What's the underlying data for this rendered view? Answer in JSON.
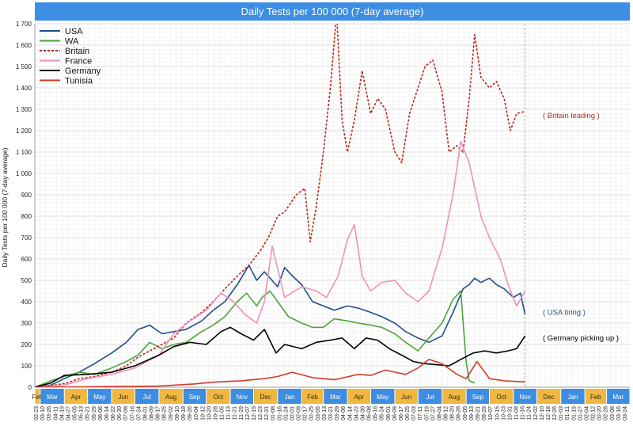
{
  "chart_data": {
    "type": "line",
    "title": "Daily Tests per 100 000 (7-day average)",
    "ylabel": "Daily Tests per 100 000 (7-day average)",
    "ylim": [
      0,
      1700
    ],
    "y_ticks": [
      0,
      100,
      200,
      300,
      400,
      500,
      600,
      700,
      800,
      900,
      1000,
      1100,
      1200,
      1300,
      1400,
      1500,
      1600,
      1700
    ],
    "y_tick_labels": [
      "0",
      "100",
      "200",
      "300",
      "400",
      "500",
      "600",
      "700",
      "800",
      "900",
      "1 000",
      "1 100",
      "1 200",
      "1 300",
      "1 400",
      "1 500",
      "1 600",
      "1 700"
    ],
    "x_start": "2020-02-23",
    "x_end": "2022-03-31",
    "current_date": "2021-11-16",
    "grid": true,
    "legend_position": "top-left",
    "date_labels": [
      "02-23",
      "03-10",
      "03-26",
      "04-11",
      "04-19",
      "04-27",
      "05-05",
      "05-13",
      "05-21",
      "05-29",
      "06-06",
      "06-14",
      "06-22",
      "06-30",
      "07-08",
      "07-16",
      "07-24",
      "08-01",
      "08-09",
      "08-17",
      "08-25",
      "09-02",
      "09-10",
      "09-18",
      "09-26",
      "10-04",
      "10-12",
      "10-20",
      "10-28",
      "11-05",
      "11-13",
      "11-21",
      "11-29",
      "12-07",
      "12-15",
      "12-23",
      "12-31",
      "01-08",
      "01-16",
      "01-24",
      "02-01",
      "02-09",
      "02-17",
      "02-25",
      "03-05",
      "03-13",
      "03-21",
      "03-29",
      "04-06",
      "04-14",
      "04-22",
      "04-30",
      "05-08",
      "05-16",
      "05-24",
      "06-01",
      "06-09",
      "06-17",
      "06-25",
      "07-03",
      "07-11",
      "07-19",
      "07-27",
      "08-04",
      "08-12",
      "08-20",
      "08-28",
      "09-05",
      "09-13",
      "09-21",
      "09-29",
      "10-07",
      "10-15",
      "10-23",
      "10-31",
      "11-08",
      "11-16",
      "11-24",
      "12-02",
      "12-10",
      "12-18",
      "12-26",
      "01-03",
      "01-11",
      "01-19",
      "01-27",
      "02-04",
      "02-12",
      "02-20",
      "02-28",
      "03-08",
      "03-16",
      "03-24"
    ],
    "months": [
      {
        "label": "Feb",
        "start": "2020-02-23",
        "end": "2020-03-01",
        "color": "#f0b840"
      },
      {
        "label": "Mar",
        "start": "2020-03-01",
        "end": "2020-04-01",
        "color": "#3d8ee3"
      },
      {
        "label": "Apr",
        "start": "2020-04-01",
        "end": "2020-05-01",
        "color": "#f0b840"
      },
      {
        "label": "May",
        "start": "2020-05-01",
        "end": "2020-06-01",
        "color": "#3d8ee3"
      },
      {
        "label": "Jun",
        "start": "2020-06-01",
        "end": "2020-07-01",
        "color": "#f0b840"
      },
      {
        "label": "Jul",
        "start": "2020-07-01",
        "end": "2020-08-01",
        "color": "#3d8ee3"
      },
      {
        "label": "Aug",
        "start": "2020-08-01",
        "end": "2020-09-01",
        "color": "#f0b840"
      },
      {
        "label": "Sep",
        "start": "2020-09-01",
        "end": "2020-10-01",
        "color": "#3d8ee3"
      },
      {
        "label": "Oct",
        "start": "2020-10-01",
        "end": "2020-11-01",
        "color": "#f0b840"
      },
      {
        "label": "Nov",
        "start": "2020-11-01",
        "end": "2020-12-01",
        "color": "#3d8ee3"
      },
      {
        "label": "Dec",
        "start": "2020-12-01",
        "end": "2021-01-01",
        "color": "#f0b840"
      },
      {
        "label": "Jan",
        "start": "2021-01-01",
        "end": "2021-02-01",
        "color": "#3d8ee3"
      },
      {
        "label": "Feb",
        "start": "2021-02-01",
        "end": "2021-03-01",
        "color": "#f0b840"
      },
      {
        "label": "Mar",
        "start": "2021-03-01",
        "end": "2021-04-01",
        "color": "#3d8ee3"
      },
      {
        "label": "Apr",
        "start": "2021-04-01",
        "end": "2021-05-01",
        "color": "#f0b840"
      },
      {
        "label": "May",
        "start": "2021-05-01",
        "end": "2021-06-01",
        "color": "#3d8ee3"
      },
      {
        "label": "Jun",
        "start": "2021-06-01",
        "end": "2021-07-01",
        "color": "#f0b840"
      },
      {
        "label": "Jul",
        "start": "2021-07-01",
        "end": "2021-08-01",
        "color": "#3d8ee3"
      },
      {
        "label": "Aug",
        "start": "2021-08-01",
        "end": "2021-09-01",
        "color": "#f0b840"
      },
      {
        "label": "Sep",
        "start": "2021-09-01",
        "end": "2021-10-01",
        "color": "#3d8ee3"
      },
      {
        "label": "Oct",
        "start": "2021-10-01",
        "end": "2021-11-01",
        "color": "#f0b840"
      },
      {
        "label": "Nov",
        "start": "2021-11-01",
        "end": "2021-12-01",
        "color": "#3d8ee3"
      },
      {
        "label": "Dec",
        "start": "2021-12-01",
        "end": "2022-01-01",
        "color": "#f0b840"
      },
      {
        "label": "Jan",
        "start": "2022-01-01",
        "end": "2022-02-01",
        "color": "#3d8ee3"
      },
      {
        "label": "Feb",
        "start": "2022-02-01",
        "end": "2022-03-01",
        "color": "#f0b840"
      },
      {
        "label": "Mar",
        "start": "2022-03-01",
        "end": "2022-03-31",
        "color": "#3d8ee3"
      }
    ],
    "series": [
      {
        "name": "USA",
        "color": "#1f4e8c",
        "dash": "none",
        "width": 1.6,
        "x": [
          "2020-02-23",
          "2020-03-15",
          "2020-04-01",
          "2020-04-20",
          "2020-05-10",
          "2020-06-01",
          "2020-06-20",
          "2020-07-05",
          "2020-07-20",
          "2020-08-05",
          "2020-08-20",
          "2020-09-05",
          "2020-09-25",
          "2020-10-10",
          "2020-10-25",
          "2020-11-10",
          "2020-11-25",
          "2020-12-05",
          "2020-12-15",
          "2021-01-01",
          "2021-01-10",
          "2021-01-20",
          "2021-02-01",
          "2021-02-15",
          "2021-03-01",
          "2021-03-15",
          "2021-04-01",
          "2021-04-15",
          "2021-05-01",
          "2021-05-15",
          "2021-06-01",
          "2021-06-15",
          "2021-07-01",
          "2021-07-15",
          "2021-08-01",
          "2021-08-15",
          "2021-08-28",
          "2021-09-05",
          "2021-09-12",
          "2021-09-20",
          "2021-10-01",
          "2021-10-10",
          "2021-10-20",
          "2021-11-01",
          "2021-11-10",
          "2021-11-16"
        ],
        "values": [
          0,
          10,
          40,
          70,
          110,
          160,
          210,
          270,
          290,
          250,
          260,
          270,
          310,
          360,
          400,
          480,
          570,
          500,
          540,
          470,
          560,
          520,
          480,
          400,
          380,
          360,
          380,
          370,
          350,
          330,
          300,
          260,
          230,
          210,
          240,
          350,
          460,
          480,
          510,
          490,
          510,
          480,
          460,
          420,
          440,
          340
        ]
      },
      {
        "name": "WA",
        "color": "#4ca33a",
        "dash": "none",
        "width": 1.6,
        "x": [
          "2020-02-23",
          "2020-03-15",
          "2020-04-01",
          "2020-04-20",
          "2020-05-10",
          "2020-06-01",
          "2020-06-20",
          "2020-07-05",
          "2020-07-20",
          "2020-08-05",
          "2020-08-20",
          "2020-09-05",
          "2020-09-25",
          "2020-10-10",
          "2020-10-25",
          "2020-11-10",
          "2020-11-22",
          "2020-12-05",
          "2020-12-12",
          "2020-12-22",
          "2021-01-01",
          "2021-01-15",
          "2021-02-01",
          "2021-02-15",
          "2021-03-01",
          "2021-03-15",
          "2021-04-01",
          "2021-04-15",
          "2021-05-01",
          "2021-05-15",
          "2021-06-01",
          "2021-06-15",
          "2021-07-01",
          "2021-07-15",
          "2021-08-01",
          "2021-08-15",
          "2021-08-25",
          "2021-09-01",
          "2021-09-05",
          "2021-09-12"
        ],
        "values": [
          0,
          30,
          50,
          70,
          60,
          90,
          120,
          150,
          210,
          180,
          200,
          210,
          260,
          290,
          330,
          400,
          440,
          380,
          420,
          450,
          400,
          330,
          300,
          280,
          280,
          320,
          310,
          300,
          290,
          280,
          250,
          210,
          170,
          230,
          300,
          410,
          450,
          120,
          30,
          20
        ]
      },
      {
        "name": "Britain",
        "color": "#b5281c",
        "dash": "3,2",
        "width": 1.6,
        "x": [
          "2020-02-23",
          "2020-03-20",
          "2020-04-05",
          "2020-04-20",
          "2020-05-10",
          "2020-06-01",
          "2020-06-20",
          "2020-07-05",
          "2020-07-20",
          "2020-08-05",
          "2020-08-20",
          "2020-09-05",
          "2020-09-25",
          "2020-10-10",
          "2020-10-25",
          "2020-11-10",
          "2020-11-25",
          "2020-12-10",
          "2020-12-20",
          "2021-01-01",
          "2021-01-10",
          "2021-01-25",
          "2021-02-05",
          "2021-02-12",
          "2021-02-20",
          "2021-03-01",
          "2021-03-10",
          "2021-03-18",
          "2021-03-25",
          "2021-04-01",
          "2021-04-10",
          "2021-04-20",
          "2021-05-01",
          "2021-05-10",
          "2021-05-20",
          "2021-06-01",
          "2021-06-10",
          "2021-06-20",
          "2021-07-01",
          "2021-07-10",
          "2021-07-20",
          "2021-08-01",
          "2021-08-10",
          "2021-08-20",
          "2021-08-28",
          "2021-09-05",
          "2021-09-12",
          "2021-09-20",
          "2021-10-01",
          "2021-10-10",
          "2021-10-20",
          "2021-10-28",
          "2021-11-05",
          "2021-11-16"
        ],
        "values": [
          0,
          10,
          20,
          40,
          50,
          70,
          100,
          140,
          170,
          200,
          230,
          300,
          350,
          400,
          460,
          520,
          570,
          640,
          700,
          800,
          820,
          900,
          930,
          680,
          850,
          1100,
          1400,
          1750,
          1250,
          1100,
          1250,
          1480,
          1280,
          1350,
          1300,
          1100,
          1050,
          1280,
          1400,
          1500,
          1530,
          1380,
          1100,
          1130,
          1100,
          1350,
          1650,
          1450,
          1400,
          1430,
          1350,
          1200,
          1280,
          1290
        ]
      },
      {
        "name": "France",
        "color": "#ee92bb",
        "dash": "none",
        "width": 1.6,
        "x": [
          "2020-02-23",
          "2020-04-01",
          "2020-05-01",
          "2020-06-01",
          "2020-07-01",
          "2020-08-01",
          "2020-08-20",
          "2020-09-10",
          "2020-10-01",
          "2020-10-20",
          "2020-11-05",
          "2020-11-20",
          "2020-12-05",
          "2020-12-15",
          "2020-12-25",
          "2021-01-10",
          "2021-02-01",
          "2021-02-20",
          "2021-03-05",
          "2021-03-20",
          "2021-04-01",
          "2021-04-10",
          "2021-04-20",
          "2021-05-01",
          "2021-05-15",
          "2021-06-01",
          "2021-06-15",
          "2021-07-01",
          "2021-07-15",
          "2021-08-01",
          "2021-08-15",
          "2021-08-25",
          "2021-09-05",
          "2021-09-20",
          "2021-10-01",
          "2021-10-15",
          "2021-10-25",
          "2021-11-05",
          "2021-11-16"
        ],
        "values": [
          0,
          10,
          40,
          60,
          90,
          150,
          250,
          310,
          360,
          440,
          400,
          340,
          300,
          400,
          660,
          420,
          470,
          450,
          420,
          520,
          690,
          760,
          520,
          450,
          490,
          500,
          440,
          400,
          450,
          650,
          900,
          1150,
          1050,
          800,
          700,
          600,
          480,
          380,
          450
        ]
      },
      {
        "name": "Germany",
        "color": "#000000",
        "dash": "none",
        "width": 1.6,
        "x": [
          "2020-02-23",
          "2020-03-15",
          "2020-04-01",
          "2020-05-01",
          "2020-06-01",
          "2020-07-01",
          "2020-08-01",
          "2020-08-20",
          "2020-09-10",
          "2020-10-01",
          "2020-10-20",
          "2020-11-01",
          "2020-11-15",
          "2020-12-01",
          "2020-12-15",
          "2020-12-30",
          "2021-01-10",
          "2021-02-01",
          "2021-02-20",
          "2021-03-10",
          "2021-03-25",
          "2021-04-10",
          "2021-04-25",
          "2021-05-10",
          "2021-05-25",
          "2021-06-10",
          "2021-06-25",
          "2021-07-10",
          "2021-07-25",
          "2021-08-10",
          "2021-08-25",
          "2021-09-10",
          "2021-09-25",
          "2021-10-10",
          "2021-10-25",
          "2021-11-05",
          "2021-11-16"
        ],
        "values": [
          0,
          20,
          55,
          60,
          70,
          100,
          150,
          190,
          210,
          200,
          260,
          280,
          250,
          220,
          270,
          160,
          200,
          180,
          210,
          220,
          230,
          180,
          230,
          220,
          180,
          150,
          120,
          110,
          105,
          100,
          130,
          160,
          170,
          160,
          170,
          180,
          240
        ]
      },
      {
        "name": "Tunisia",
        "color": "#d23b2b",
        "dash": "none",
        "width": 1.6,
        "x": [
          "2020-02-23",
          "2020-05-01",
          "2020-08-01",
          "2020-09-15",
          "2020-10-15",
          "2020-11-15",
          "2020-12-15",
          "2021-01-01",
          "2021-01-20",
          "2021-02-15",
          "2021-03-15",
          "2021-04-15",
          "2021-05-01",
          "2021-05-20",
          "2021-06-15",
          "2021-07-01",
          "2021-07-15",
          "2021-08-01",
          "2021-08-20",
          "2021-09-01",
          "2021-09-15",
          "2021-10-01",
          "2021-10-20",
          "2021-11-16"
        ],
        "values": [
          0,
          2,
          5,
          15,
          25,
          30,
          40,
          50,
          70,
          45,
          35,
          60,
          55,
          80,
          60,
          90,
          130,
          110,
          60,
          40,
          120,
          40,
          30,
          25
        ]
      }
    ],
    "annotations": [
      {
        "text": "( Britain leading )",
        "x": "2021-11-25",
        "y": 1270,
        "color": "#b5281c"
      },
      {
        "text": "( USA tiring )",
        "x": "2021-11-25",
        "y": 350,
        "color": "#1f4e8c"
      },
      {
        "text": "( Germany picking up )",
        "x": "2021-11-25",
        "y": 230,
        "color": "#000000"
      }
    ]
  }
}
